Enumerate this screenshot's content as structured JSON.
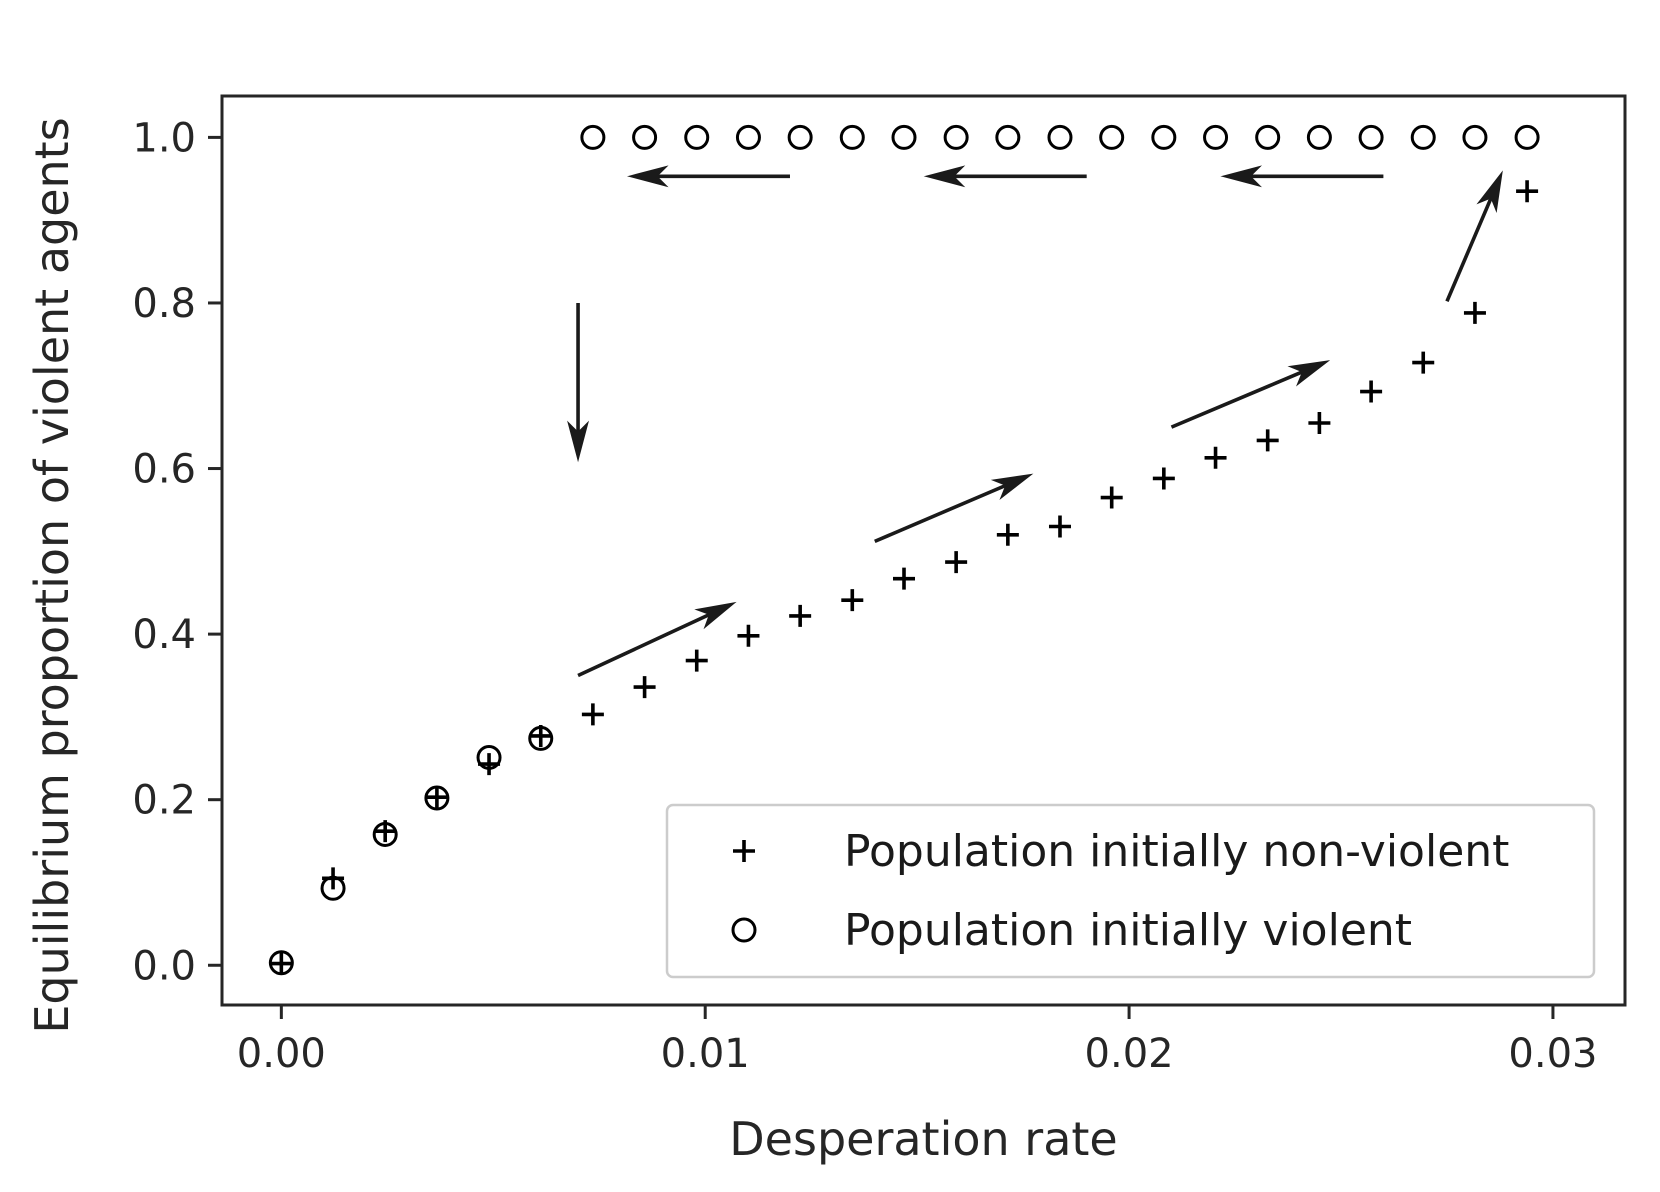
{
  "chart_data": {
    "type": "scatter",
    "title": "",
    "xlabel": "Desperation rate",
    "ylabel": "Equilibrium proportion of violent agents",
    "xlim": [
      -0.0014,
      0.0317
    ],
    "ylim": [
      -0.048,
      1.05
    ],
    "xticks": [
      0.0,
      0.01,
      0.02,
      0.03
    ],
    "xtick_labels": [
      "0.00",
      "0.01",
      "0.02",
      "0.03"
    ],
    "yticks": [
      0.0,
      0.2,
      0.4,
      0.6,
      0.8,
      1.0
    ],
    "ytick_labels": [
      "0.0",
      "0.2",
      "0.4",
      "0.6",
      "0.8",
      "1.0"
    ],
    "grid": false,
    "legend_position": "bottom-right",
    "series": [
      {
        "name": "Population initially non-violent",
        "marker": "plus",
        "color": "#000000",
        "x": [
          0.0,
          0.00122,
          0.00245,
          0.00367,
          0.0049,
          0.00612,
          0.00735,
          0.00857,
          0.0098,
          0.01102,
          0.01224,
          0.01347,
          0.01469,
          0.01592,
          0.01714,
          0.01837,
          0.01959,
          0.02082,
          0.02204,
          0.02327,
          0.02449,
          0.02571,
          0.02694,
          0.02816,
          0.02939
        ],
        "y": [
          0.002,
          0.105,
          0.162,
          0.203,
          0.243,
          0.277,
          0.303,
          0.336,
          0.368,
          0.398,
          0.422,
          0.441,
          0.467,
          0.487,
          0.52,
          0.53,
          0.565,
          0.588,
          0.613,
          0.634,
          0.655,
          0.693,
          0.728,
          0.788,
          0.935
        ]
      },
      {
        "name": "Population initially violent",
        "marker": "circle",
        "color": "#000000",
        "x": [
          0.0,
          0.00122,
          0.00245,
          0.00367,
          0.0049,
          0.00612,
          0.00735,
          0.00857,
          0.0098,
          0.01102,
          0.01224,
          0.01347,
          0.01469,
          0.01592,
          0.01714,
          0.01837,
          0.01959,
          0.02082,
          0.02204,
          0.02327,
          0.02449,
          0.02571,
          0.02694,
          0.02816,
          0.02939
        ],
        "y": [
          0.003,
          0.093,
          0.158,
          0.202,
          0.251,
          0.274,
          1.0,
          1.0,
          1.0,
          1.0,
          1.0,
          1.0,
          1.0,
          1.0,
          1.0,
          1.0,
          1.0,
          1.0,
          1.0,
          1.0,
          1.0,
          1.0,
          1.0,
          1.0,
          1.0
        ]
      }
    ],
    "annotations": [
      {
        "type": "arrow",
        "from": [
          0.012,
          0.953
        ],
        "to": [
          0.0082,
          0.953
        ]
      },
      {
        "type": "arrow",
        "from": [
          0.019,
          0.953
        ],
        "to": [
          0.0152,
          0.953
        ]
      },
      {
        "type": "arrow",
        "from": [
          0.026,
          0.953
        ],
        "to": [
          0.0222,
          0.953
        ]
      },
      {
        "type": "arrow",
        "from": [
          0.007,
          0.8
        ],
        "to": [
          0.007,
          0.61
        ]
      },
      {
        "type": "arrow",
        "from": [
          0.007,
          0.35
        ],
        "to": [
          0.0107,
          0.438
        ]
      },
      {
        "type": "arrow",
        "from": [
          0.014,
          0.512
        ],
        "to": [
          0.0177,
          0.593
        ]
      },
      {
        "type": "arrow",
        "from": [
          0.021,
          0.65
        ],
        "to": [
          0.0247,
          0.73
        ]
      },
      {
        "type": "arrow",
        "from": [
          0.0275,
          0.802
        ],
        "to": [
          0.0288,
          0.958
        ]
      }
    ]
  }
}
